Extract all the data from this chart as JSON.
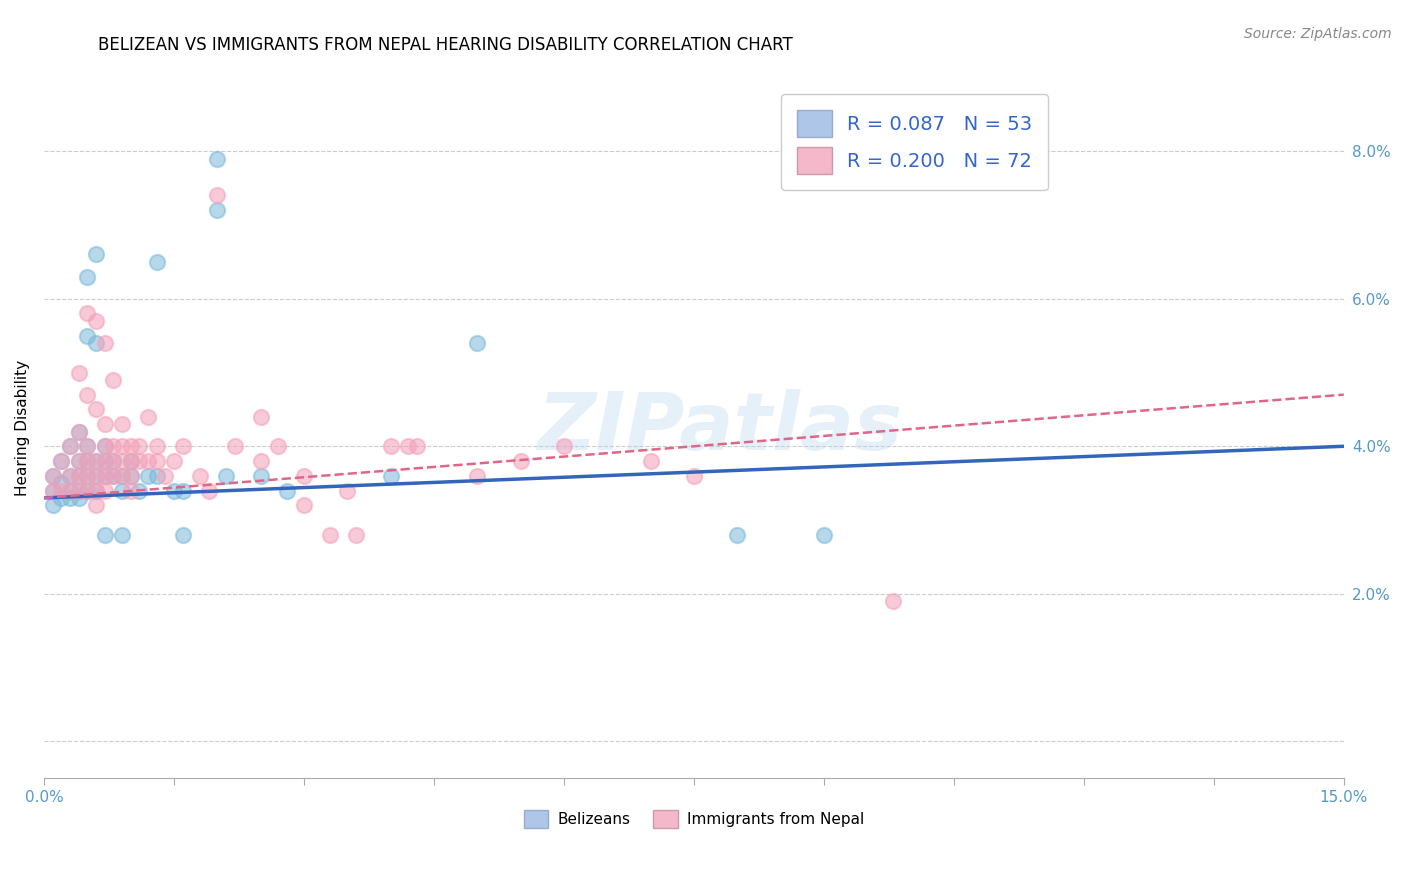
{
  "title": "BELIZEAN VS IMMIGRANTS FROM NEPAL HEARING DISABILITY CORRELATION CHART",
  "source": "Source: ZipAtlas.com",
  "ylabel": "Hearing Disability",
  "x_range": [
    0.0,
    0.15
  ],
  "y_range": [
    -0.005,
    0.09
  ],
  "y_ticks": [
    0.0,
    0.02,
    0.04,
    0.06,
    0.08
  ],
  "y_tick_labels": [
    "",
    "2.0%",
    "4.0%",
    "6.0%",
    "8.0%"
  ],
  "x_ticks": [
    0.0,
    0.015,
    0.03,
    0.045,
    0.06,
    0.075,
    0.09,
    0.105,
    0.12,
    0.135,
    0.15
  ],
  "legend_label1": "R = 0.087   N = 53",
  "legend_label2": "R = 0.200   N = 72",
  "legend_color1": "#aec6e8",
  "legend_color2": "#f4b8ca",
  "watermark": "ZIPatlas",
  "blue_color": "#7ab8d9",
  "pink_color": "#f4a0b8",
  "line_blue": "#3366bb",
  "line_pink": "#e06688",
  "blue_line_x": [
    0.0,
    0.15
  ],
  "blue_line_y": [
    0.033,
    0.04
  ],
  "pink_line_x": [
    0.0,
    0.15
  ],
  "pink_line_y": [
    0.033,
    0.047
  ],
  "title_fontsize": 12,
  "source_fontsize": 10,
  "axis_label_fontsize": 11,
  "tick_fontsize": 11,
  "legend_fontsize": 14,
  "belizean_points": [
    [
      0.001,
      0.036
    ],
    [
      0.001,
      0.034
    ],
    [
      0.001,
      0.032
    ],
    [
      0.002,
      0.038
    ],
    [
      0.002,
      0.035
    ],
    [
      0.002,
      0.033
    ],
    [
      0.003,
      0.04
    ],
    [
      0.003,
      0.036
    ],
    [
      0.003,
      0.034
    ],
    [
      0.003,
      0.033
    ],
    [
      0.004,
      0.042
    ],
    [
      0.004,
      0.038
    ],
    [
      0.004,
      0.036
    ],
    [
      0.004,
      0.034
    ],
    [
      0.004,
      0.033
    ],
    [
      0.005,
      0.063
    ],
    [
      0.005,
      0.055
    ],
    [
      0.005,
      0.04
    ],
    [
      0.005,
      0.038
    ],
    [
      0.005,
      0.036
    ],
    [
      0.005,
      0.034
    ],
    [
      0.006,
      0.066
    ],
    [
      0.006,
      0.054
    ],
    [
      0.006,
      0.038
    ],
    [
      0.006,
      0.036
    ],
    [
      0.006,
      0.034
    ],
    [
      0.007,
      0.04
    ],
    [
      0.007,
      0.038
    ],
    [
      0.007,
      0.036
    ],
    [
      0.007,
      0.028
    ],
    [
      0.008,
      0.038
    ],
    [
      0.008,
      0.036
    ],
    [
      0.009,
      0.036
    ],
    [
      0.009,
      0.034
    ],
    [
      0.009,
      0.028
    ],
    [
      0.01,
      0.038
    ],
    [
      0.01,
      0.036
    ],
    [
      0.011,
      0.034
    ],
    [
      0.012,
      0.036
    ],
    [
      0.013,
      0.065
    ],
    [
      0.013,
      0.036
    ],
    [
      0.015,
      0.034
    ],
    [
      0.016,
      0.034
    ],
    [
      0.016,
      0.028
    ],
    [
      0.02,
      0.079
    ],
    [
      0.02,
      0.072
    ],
    [
      0.021,
      0.036
    ],
    [
      0.025,
      0.036
    ],
    [
      0.028,
      0.034
    ],
    [
      0.04,
      0.036
    ],
    [
      0.05,
      0.054
    ],
    [
      0.08,
      0.028
    ],
    [
      0.09,
      0.028
    ]
  ],
  "nepal_points": [
    [
      0.001,
      0.036
    ],
    [
      0.001,
      0.034
    ],
    [
      0.002,
      0.038
    ],
    [
      0.002,
      0.034
    ],
    [
      0.003,
      0.04
    ],
    [
      0.003,
      0.036
    ],
    [
      0.003,
      0.034
    ],
    [
      0.004,
      0.05
    ],
    [
      0.004,
      0.042
    ],
    [
      0.004,
      0.038
    ],
    [
      0.004,
      0.036
    ],
    [
      0.004,
      0.034
    ],
    [
      0.005,
      0.058
    ],
    [
      0.005,
      0.047
    ],
    [
      0.005,
      0.04
    ],
    [
      0.005,
      0.038
    ],
    [
      0.005,
      0.036
    ],
    [
      0.005,
      0.034
    ],
    [
      0.006,
      0.057
    ],
    [
      0.006,
      0.045
    ],
    [
      0.006,
      0.038
    ],
    [
      0.006,
      0.036
    ],
    [
      0.006,
      0.034
    ],
    [
      0.006,
      0.032
    ],
    [
      0.007,
      0.054
    ],
    [
      0.007,
      0.043
    ],
    [
      0.007,
      0.04
    ],
    [
      0.007,
      0.038
    ],
    [
      0.007,
      0.036
    ],
    [
      0.007,
      0.034
    ],
    [
      0.008,
      0.049
    ],
    [
      0.008,
      0.04
    ],
    [
      0.008,
      0.038
    ],
    [
      0.008,
      0.036
    ],
    [
      0.009,
      0.043
    ],
    [
      0.009,
      0.04
    ],
    [
      0.009,
      0.038
    ],
    [
      0.009,
      0.036
    ],
    [
      0.01,
      0.04
    ],
    [
      0.01,
      0.038
    ],
    [
      0.01,
      0.036
    ],
    [
      0.01,
      0.034
    ],
    [
      0.011,
      0.04
    ],
    [
      0.011,
      0.038
    ],
    [
      0.012,
      0.044
    ],
    [
      0.012,
      0.038
    ],
    [
      0.013,
      0.04
    ],
    [
      0.013,
      0.038
    ],
    [
      0.014,
      0.036
    ],
    [
      0.015,
      0.038
    ],
    [
      0.016,
      0.04
    ],
    [
      0.018,
      0.036
    ],
    [
      0.019,
      0.034
    ],
    [
      0.02,
      0.074
    ],
    [
      0.022,
      0.04
    ],
    [
      0.025,
      0.044
    ],
    [
      0.025,
      0.038
    ],
    [
      0.027,
      0.04
    ],
    [
      0.03,
      0.036
    ],
    [
      0.03,
      0.032
    ],
    [
      0.033,
      0.028
    ],
    [
      0.035,
      0.034
    ],
    [
      0.036,
      0.028
    ],
    [
      0.04,
      0.04
    ],
    [
      0.042,
      0.04
    ],
    [
      0.043,
      0.04
    ],
    [
      0.05,
      0.036
    ],
    [
      0.055,
      0.038
    ],
    [
      0.06,
      0.04
    ],
    [
      0.07,
      0.038
    ],
    [
      0.075,
      0.036
    ],
    [
      0.098,
      0.019
    ]
  ]
}
